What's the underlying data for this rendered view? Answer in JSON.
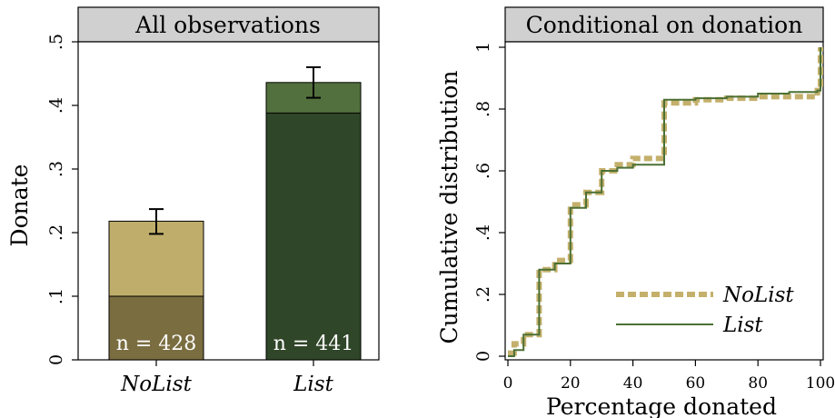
{
  "chart_data": [
    {
      "type": "bar",
      "title": "All observations",
      "ylabel": "Donate",
      "xlabel": "",
      "ylim": [
        0,
        0.5
      ],
      "yticks": [
        0,
        0.1,
        0.2,
        0.3,
        0.4,
        0.5
      ],
      "ytick_labels": [
        "0",
        ".1",
        ".2",
        ".3",
        ".4",
        ".5"
      ],
      "categories": [
        "NoList",
        "List"
      ],
      "series": [
        {
          "values": [
            0.218,
            0.436
          ],
          "colors": [
            "#bfad6b",
            "#52703d"
          ]
        },
        {
          "values": [
            0.1,
            0.388
          ],
          "colors": [
            "#7a6d40",
            "#2f4628"
          ]
        }
      ],
      "error_bars": [
        {
          "low": 0.198,
          "high": 0.237
        },
        {
          "low": 0.412,
          "high": 0.46
        }
      ],
      "annotations": [
        "n = 428",
        "n = 441"
      ]
    },
    {
      "type": "line",
      "title": "Conditional on donation",
      "xlabel": "Percentage donated",
      "ylabel": "Cumulative distribution",
      "xlim": [
        0,
        100
      ],
      "ylim": [
        0,
        1
      ],
      "xticks": [
        0,
        20,
        40,
        60,
        80,
        100
      ],
      "yticks": [
        0,
        0.2,
        0.4,
        0.6,
        0.8,
        1
      ],
      "ytick_labels": [
        "0",
        ".2",
        ".4",
        ".6",
        ".8",
        "1"
      ],
      "legend_position": "bottom-right",
      "series": [
        {
          "name": "NoList",
          "color": "#c4b06c",
          "style": "dashed-thick",
          "x": [
            0,
            2,
            5,
            10,
            15,
            20,
            25,
            30,
            35,
            40,
            50,
            60,
            70,
            80,
            90,
            99,
            100
          ],
          "y": [
            0.01,
            0.04,
            0.07,
            0.28,
            0.31,
            0.49,
            0.53,
            0.6,
            0.62,
            0.64,
            0.82,
            0.83,
            0.835,
            0.84,
            0.84,
            0.86,
            1.0
          ]
        },
        {
          "name": "List",
          "color": "#4c7034",
          "style": "solid",
          "x": [
            0,
            2,
            5,
            10,
            15,
            20,
            25,
            30,
            35,
            40,
            50,
            60,
            70,
            80,
            90,
            99,
            100
          ],
          "y": [
            0.0,
            0.02,
            0.07,
            0.28,
            0.3,
            0.48,
            0.53,
            0.6,
            0.61,
            0.62,
            0.83,
            0.835,
            0.84,
            0.85,
            0.855,
            0.86,
            1.0
          ]
        }
      ]
    }
  ]
}
